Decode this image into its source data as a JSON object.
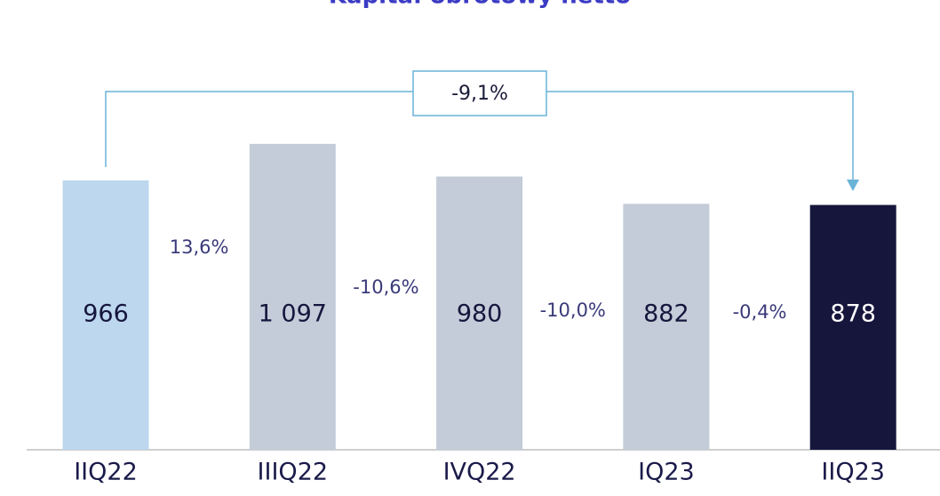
{
  "chart_data": {
    "type": "bar",
    "title": "Kapitał obrotowy netto",
    "categories": [
      "IIQ22",
      "IIIQ22",
      "IVQ22",
      "IQ23",
      "IIQ23"
    ],
    "values": [
      966,
      1097,
      980,
      882,
      878
    ],
    "value_labels": [
      "966",
      "1 097",
      "980",
      "882",
      "878"
    ],
    "colors": [
      "#bdd7ee",
      "#c3ccd8",
      "#c3ccd8",
      "#c3ccd8",
      "#16163d"
    ],
    "changes": [
      "13,6%",
      "-10,6%",
      "-10,0%",
      "-0,4%"
    ],
    "total_change": "-9,1%"
  }
}
